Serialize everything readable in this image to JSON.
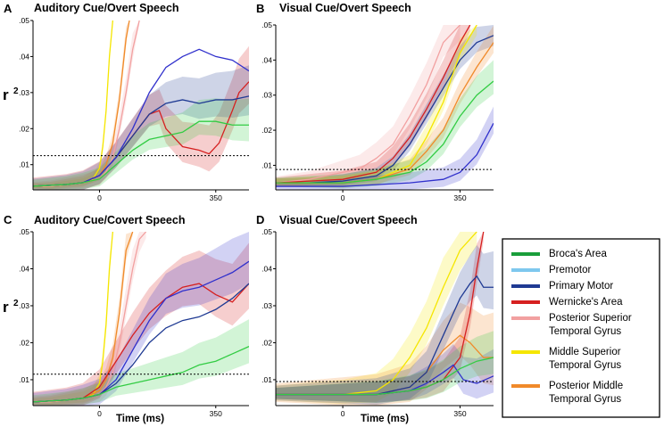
{
  "chart_data": {
    "type": "line",
    "y_axis_label": "r",
    "y_axis_label_superscript": "2",
    "x_axis_label": "Time (ms)",
    "y_ticks": [
      ".01",
      ".02",
      ".03",
      ".04",
      ".05"
    ],
    "x_ticks": [
      "0",
      "350"
    ],
    "ylim": [
      0.003,
      0.05
    ],
    "xlim": [
      -200,
      450
    ],
    "threshold_style": "dashed black",
    "legend": {
      "placement": "bottom-right",
      "entries": [
        {
          "label": "Broca's Area",
          "color": "#1a9e3a"
        },
        {
          "label": "Premotor",
          "color": "#7ec8ee"
        },
        {
          "label": "Primary Motor",
          "color": "#1f3a93"
        },
        {
          "label": "Wernicke's Area",
          "color": "#d62020"
        },
        {
          "label": "Posterior Superior Temporal Gyrus",
          "color": "#f2a0a0"
        },
        {
          "label": "Middle Superior Temporal Gyrus",
          "color": "#f5e600"
        },
        {
          "label": "Posterior Middle Temporal Gyrus",
          "color": "#f08a2a"
        }
      ]
    },
    "panels": [
      {
        "letter": "A",
        "title": "Auditory Cue/Overt Speech",
        "threshold": 0.0125,
        "series": [
          {
            "name": "Middle Superior Temporal Gyrus",
            "color": "#f5e600",
            "band": 0.002,
            "x": [
              -200,
              -150,
              -100,
              -50,
              -20,
              0,
              10,
              20,
              30,
              40
            ],
            "y": [
              0.004,
              0.004,
              0.0045,
              0.005,
              0.006,
              0.009,
              0.015,
              0.025,
              0.04,
              0.052
            ]
          },
          {
            "name": "Posterior Middle Temporal Gyrus",
            "color": "#f08a2a",
            "band": 0.003,
            "x": [
              -200,
              -150,
              -100,
              -50,
              0,
              20,
              40,
              60,
              80,
              90
            ],
            "y": [
              0.004,
              0.004,
              0.0045,
              0.005,
              0.007,
              0.01,
              0.016,
              0.028,
              0.045,
              0.052
            ]
          },
          {
            "name": "Posterior Superior Temporal Gyrus",
            "color": "#f2a0a0",
            "band": 0.004,
            "x": [
              -200,
              -150,
              -100,
              -50,
              0,
              20,
              40,
              60,
              80,
              100,
              120
            ],
            "y": [
              0.004,
              0.004,
              0.0045,
              0.005,
              0.006,
              0.008,
              0.012,
              0.02,
              0.03,
              0.042,
              0.052
            ]
          },
          {
            "name": "Wernicke's Area",
            "color": "#d62020",
            "band": 0.008,
            "x": [
              -200,
              -100,
              -50,
              0,
              50,
              100,
              150,
              180,
              200,
              250,
              300,
              330,
              360,
              400,
              420,
              450
            ],
            "y": [
              0.004,
              0.0045,
              0.005,
              0.007,
              0.012,
              0.018,
              0.024,
              0.025,
              0.02,
              0.015,
              0.014,
              0.013,
              0.016,
              0.025,
              0.03,
              0.033
            ]
          },
          {
            "name": "Primary Motor",
            "color": "#1f3a93",
            "band": 0.007,
            "x": [
              -200,
              -100,
              -50,
              0,
              50,
              100,
              150,
              200,
              250,
              300,
              350,
              400,
              450
            ],
            "y": [
              0.004,
              0.0045,
              0.005,
              0.007,
              0.012,
              0.018,
              0.024,
              0.027,
              0.028,
              0.027,
              0.028,
              0.028,
              0.029
            ]
          },
          {
            "name": "Primary Motor (upper)",
            "color": "#3030cc",
            "band": 0,
            "x": [
              -200,
              -100,
              -50,
              0,
              50,
              100,
              150,
              200,
              250,
              300,
              350,
              400,
              450
            ],
            "y": [
              0.004,
              0.0045,
              0.005,
              0.007,
              0.012,
              0.02,
              0.03,
              0.037,
              0.04,
              0.042,
              0.04,
              0.039,
              0.036
            ]
          },
          {
            "name": "Broca's Area",
            "color": "#33cc44",
            "band": 0.006,
            "x": [
              -200,
              -100,
              -50,
              0,
              50,
              100,
              150,
              200,
              250,
              300,
              350,
              400,
              450
            ],
            "y": [
              0.004,
              0.0045,
              0.005,
              0.006,
              0.01,
              0.014,
              0.017,
              0.018,
              0.019,
              0.022,
              0.022,
              0.021,
              0.021
            ]
          }
        ]
      },
      {
        "letter": "B",
        "title": "Visual Cue/Overt Speech",
        "threshold": 0.0088,
        "series": [
          {
            "name": "Posterior Superior Temporal Gyrus",
            "color": "#f2a0a0",
            "band": 0.006,
            "x": [
              -200,
              -100,
              -50,
              0,
              50,
              100,
              150,
              200,
              250,
              300,
              350
            ],
            "y": [
              0.005,
              0.006,
              0.007,
              0.008,
              0.009,
              0.012,
              0.016,
              0.024,
              0.033,
              0.045,
              0.05
            ]
          },
          {
            "name": "Wernicke's Area",
            "color": "#d62020",
            "band": 0.005,
            "x": [
              -200,
              -100,
              0,
              100,
              150,
              200,
              250,
              300,
              350,
              380
            ],
            "y": [
              0.005,
              0.0055,
              0.006,
              0.008,
              0.012,
              0.018,
              0.026,
              0.035,
              0.045,
              0.052
            ]
          },
          {
            "name": "Primary Motor",
            "color": "#1f3a93",
            "band": 0.004,
            "x": [
              -200,
              -100,
              0,
              100,
              150,
              200,
              250,
              300,
              350,
              400,
              450
            ],
            "y": [
              0.005,
              0.005,
              0.0055,
              0.007,
              0.01,
              0.016,
              0.024,
              0.032,
              0.04,
              0.045,
              0.047
            ]
          },
          {
            "name": "Middle Superior Temporal Gyrus",
            "color": "#f5e600",
            "band": 0.004,
            "x": [
              -200,
              -100,
              0,
              100,
              200,
              250,
              300,
              350,
              400
            ],
            "y": [
              0.005,
              0.005,
              0.005,
              0.006,
              0.01,
              0.018,
              0.028,
              0.042,
              0.05
            ]
          },
          {
            "name": "Posterior Middle Temporal Gyrus",
            "color": "#f08a2a",
            "band": 0.004,
            "x": [
              -200,
              -100,
              0,
              100,
              200,
              250,
              300,
              350,
              400,
              450
            ],
            "y": [
              0.005,
              0.005,
              0.005,
              0.006,
              0.009,
              0.014,
              0.02,
              0.03,
              0.038,
              0.045
            ]
          },
          {
            "name": "Broca's Area",
            "color": "#33cc44",
            "band": 0.005,
            "x": [
              -200,
              -100,
              0,
              100,
              200,
              250,
              300,
              350,
              400,
              450
            ],
            "y": [
              0.005,
              0.005,
              0.005,
              0.006,
              0.008,
              0.011,
              0.016,
              0.024,
              0.03,
              0.034
            ]
          },
          {
            "name": "Primary Motor (late)",
            "color": "#3030cc",
            "band": 0.004,
            "x": [
              -200,
              -100,
              0,
              100,
              200,
              300,
              350,
              400,
              450
            ],
            "y": [
              0.004,
              0.004,
              0.004,
              0.0045,
              0.005,
              0.006,
              0.008,
              0.013,
              0.022
            ]
          }
        ]
      },
      {
        "letter": "C",
        "title": "Auditory Cue/Covert Speech",
        "threshold": 0.0115,
        "series": [
          {
            "name": "Middle Superior Temporal Gyrus",
            "color": "#f5e600",
            "band": 0.003,
            "x": [
              -200,
              -150,
              -100,
              -50,
              -20,
              0,
              10,
              20,
              30,
              40
            ],
            "y": [
              0.004,
              0.004,
              0.0045,
              0.005,
              0.006,
              0.009,
              0.015,
              0.025,
              0.04,
              0.052
            ]
          },
          {
            "name": "Posterior Middle Temporal Gyrus",
            "color": "#f08a2a",
            "band": 0.004,
            "x": [
              -200,
              -150,
              -100,
              -50,
              0,
              20,
              40,
              60,
              80,
              100
            ],
            "y": [
              0.004,
              0.004,
              0.0045,
              0.005,
              0.007,
              0.01,
              0.016,
              0.028,
              0.045,
              0.052
            ]
          },
          {
            "name": "Posterior Superior Temporal Gyrus",
            "color": "#f2a0a0",
            "band": 0.005,
            "x": [
              -200,
              -150,
              -100,
              -50,
              0,
              20,
              40,
              60,
              80,
              100,
              120,
              140
            ],
            "y": [
              0.004,
              0.004,
              0.0045,
              0.005,
              0.006,
              0.008,
              0.012,
              0.02,
              0.03,
              0.04,
              0.048,
              0.052
            ]
          },
          {
            "name": "Wernicke's Area",
            "color": "#d62020",
            "band": 0.009,
            "x": [
              -200,
              -100,
              -50,
              0,
              50,
              100,
              150,
              200,
              250,
              300,
              350,
              400,
              450
            ],
            "y": [
              0.004,
              0.0045,
              0.005,
              0.008,
              0.015,
              0.022,
              0.028,
              0.032,
              0.035,
              0.036,
              0.033,
              0.031,
              0.036
            ]
          },
          {
            "name": "Primary Motor",
            "color": "#3030cc",
            "band": 0.008,
            "x": [
              -200,
              -100,
              -50,
              0,
              50,
              100,
              150,
              200,
              250,
              300,
              350,
              400,
              450
            ],
            "y": [
              0.004,
              0.0045,
              0.005,
              0.006,
              0.01,
              0.018,
              0.026,
              0.032,
              0.034,
              0.035,
              0.037,
              0.039,
              0.042
            ]
          },
          {
            "name": "Primary Motor (lower)",
            "color": "#1f3a93",
            "band": 0,
            "x": [
              -200,
              -100,
              -50,
              0,
              50,
              100,
              150,
              200,
              250,
              300,
              350,
              400,
              450
            ],
            "y": [
              0.004,
              0.0045,
              0.005,
              0.006,
              0.009,
              0.014,
              0.02,
              0.024,
              0.026,
              0.027,
              0.029,
              0.032,
              0.036
            ]
          },
          {
            "name": "Broca's Area",
            "color": "#33cc44",
            "band": 0.006,
            "x": [
              -200,
              -100,
              -50,
              0,
              50,
              100,
              150,
              200,
              250,
              300,
              350,
              400,
              450
            ],
            "y": [
              0.004,
              0.0045,
              0.005,
              0.006,
              0.008,
              0.009,
              0.01,
              0.011,
              0.012,
              0.014,
              0.015,
              0.017,
              0.019
            ]
          }
        ]
      },
      {
        "letter": "D",
        "title": "Visual Cue/Covert Speech",
        "threshold": 0.0095,
        "series": [
          {
            "name": "Middle Superior Temporal Gyrus",
            "color": "#f5e600",
            "band": 0.008,
            "x": [
              -200,
              -100,
              0,
              100,
              150,
              200,
              250,
              300,
              350,
              400
            ],
            "y": [
              0.006,
              0.006,
              0.006,
              0.007,
              0.01,
              0.016,
              0.024,
              0.035,
              0.045,
              0.052
            ]
          },
          {
            "name": "Posterior Middle Temporal Gyrus",
            "color": "#f08a2a",
            "band": 0.01,
            "x": [
              -200,
              -100,
              0,
              100,
              200,
              250,
              300,
              350,
              380,
              400,
              420,
              450
            ],
            "y": [
              0.006,
              0.006,
              0.006,
              0.006,
              0.008,
              0.012,
              0.018,
              0.022,
              0.02,
              0.018,
              0.016,
              0.016
            ]
          },
          {
            "name": "Wernicke's Area",
            "color": "#d62020",
            "band": 0.006,
            "x": [
              -200,
              -100,
              0,
              100,
              200,
              250,
              300,
              350,
              380,
              400,
              420
            ],
            "y": [
              0.006,
              0.006,
              0.006,
              0.006,
              0.007,
              0.008,
              0.01,
              0.016,
              0.028,
              0.04,
              0.052
            ]
          },
          {
            "name": "Primary Motor",
            "color": "#1f3a93",
            "band": 0.008,
            "x": [
              -200,
              -100,
              0,
              100,
              200,
              250,
              300,
              350,
              380,
              400,
              420,
              450
            ],
            "y": [
              0.006,
              0.006,
              0.006,
              0.006,
              0.008,
              0.012,
              0.022,
              0.032,
              0.036,
              0.038,
              0.035,
              0.035
            ]
          },
          {
            "name": "Premotor",
            "color": "#3030cc",
            "band": 0.006,
            "x": [
              -200,
              -100,
              0,
              100,
              200,
              250,
              300,
              330,
              360,
              400,
              450
            ],
            "y": [
              0.006,
              0.006,
              0.006,
              0.006,
              0.007,
              0.009,
              0.012,
              0.014,
              0.01,
              0.009,
              0.011
            ]
          },
          {
            "name": "Broca's Area",
            "color": "#33cc44",
            "band": 0.006,
            "x": [
              -200,
              -100,
              0,
              100,
              200,
              250,
              300,
              350,
              400,
              450
            ],
            "y": [
              0.006,
              0.006,
              0.006,
              0.006,
              0.007,
              0.008,
              0.01,
              0.013,
              0.015,
              0.016
            ]
          }
        ]
      }
    ]
  }
}
